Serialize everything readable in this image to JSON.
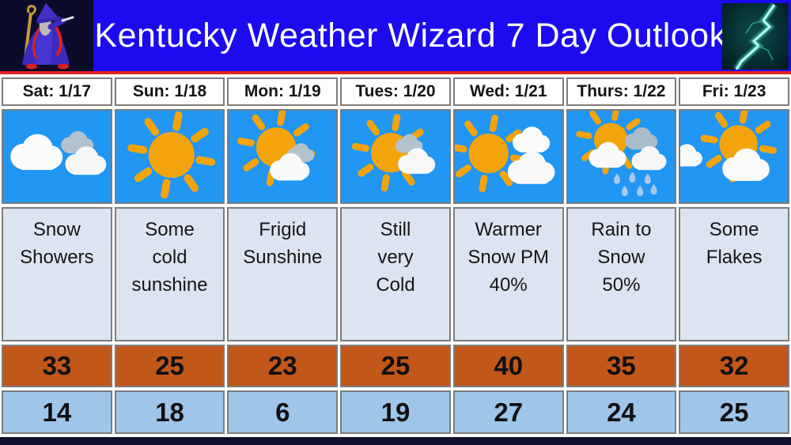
{
  "header": {
    "title": "Kentucky Weather Wizard 7 Day Outlook",
    "wizard_icon": "wizard-mascot",
    "lightning_icon": "lightning-photo",
    "banner_color": "#1c0bee",
    "underline_color": "#e32222"
  },
  "colors": {
    "sky_blue": "#2196f3",
    "high_row_orange": "#c2571a",
    "low_row_blue": "#9fc5e8",
    "description_bg": "#dde4f1",
    "cell_border": "#7c7c7c",
    "footer_navy": "#11102c"
  },
  "days": [
    {
      "label": "Sat: 1/17",
      "icon": "mostly-cloudy",
      "description": "Snow\nShowers",
      "high": "33",
      "low": "14"
    },
    {
      "label": "Sun: 1/18",
      "icon": "sunny",
      "description": "Some\ncold\nsunshine",
      "high": "25",
      "low": "18"
    },
    {
      "label": "Mon: 1/19",
      "icon": "partly-cloudy",
      "description": "Frigid\nSunshine",
      "high": "23",
      "low": "6"
    },
    {
      "label": "Tues: 1/20",
      "icon": "partly-cloudy-2",
      "description": "Still\nvery\nCold",
      "high": "25",
      "low": "19"
    },
    {
      "label": "Wed: 1/21",
      "icon": "sun-then-clouds",
      "description": "Warmer\nSnow PM\n40%",
      "high": "40",
      "low": "27"
    },
    {
      "label": "Thurs: 1/22",
      "icon": "rain-clouds",
      "description": "Rain to\nSnow\n50%",
      "high": "35",
      "low": "24"
    },
    {
      "label": "Fri: 1/23",
      "icon": "sun-behind-cloud",
      "description": "Some\nFlakes",
      "high": "32",
      "low": "25"
    }
  ],
  "chart_data": {
    "type": "table",
    "title": "Kentucky Weather Wizard 7 Day Outlook",
    "columns": [
      "Sat: 1/17",
      "Sun: 1/18",
      "Mon: 1/19",
      "Tues: 1/20",
      "Wed: 1/21",
      "Thurs: 1/22",
      "Fri: 1/23"
    ],
    "rows": {
      "conditions": [
        "Snow Showers",
        "Some cold sunshine",
        "Frigid Sunshine",
        "Still very Cold",
        "Warmer Snow PM 40%",
        "Rain to Snow 50%",
        "Some Flakes"
      ],
      "highs": [
        33,
        25,
        23,
        25,
        40,
        35,
        32
      ],
      "lows": [
        14,
        18,
        6,
        19,
        27,
        24,
        25
      ]
    }
  }
}
